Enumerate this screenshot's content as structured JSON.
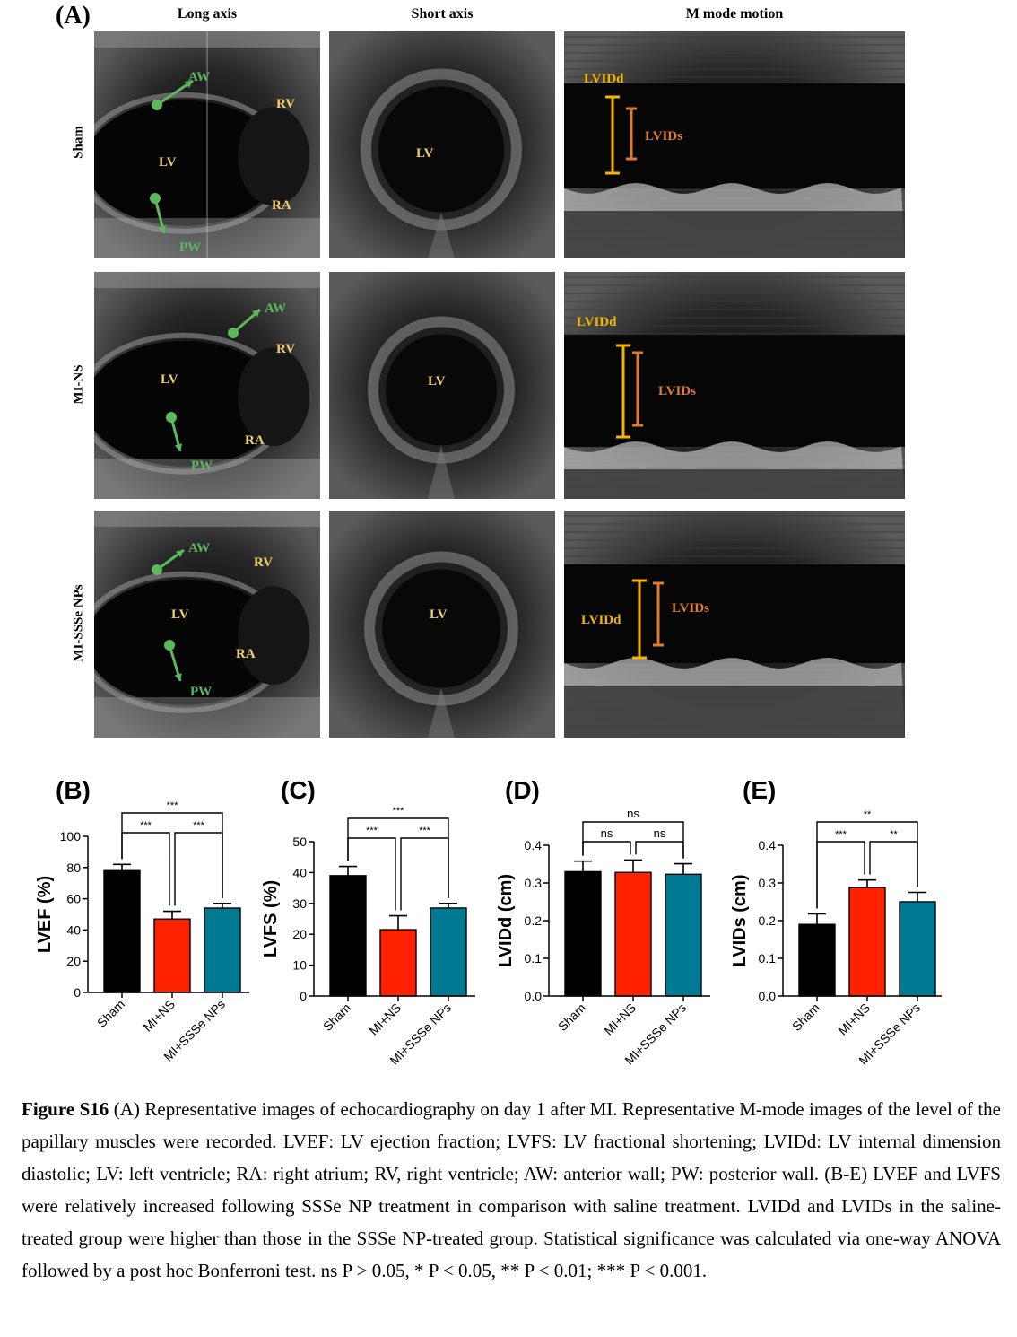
{
  "panel_a": {
    "letter": "(A)",
    "columns": [
      "Long axis",
      "Short axis",
      "M mode motion"
    ],
    "rows": [
      "Sham",
      "MI-NS",
      "MI-SSSe NPs"
    ],
    "labels": {
      "aw": "AW",
      "rv": "RV",
      "lv": "LV",
      "ra": "RA",
      "pw": "PW",
      "lvidd": "LVIDd",
      "lvids": "LVIDs"
    },
    "colors": {
      "green": "#5cb85c",
      "yellow": "#f5b400",
      "orange": "#e07a2e",
      "label": "#f0d06a"
    }
  },
  "chart_data": [
    {
      "panel": "(B)",
      "type": "bar",
      "ylabel": "LVEF (%)",
      "categories": [
        "Sham",
        "MI+NS",
        "MI+SSSe NPs"
      ],
      "values": [
        78,
        47,
        54
      ],
      "errors": [
        4,
        5,
        3
      ],
      "ylim": [
        0,
        100
      ],
      "yticks": [
        "0",
        "20",
        "40",
        "60",
        "80",
        "100"
      ],
      "significance": [
        {
          "from": 0,
          "to": 1,
          "label": "***",
          "level": 1
        },
        {
          "from": 1,
          "to": 2,
          "label": "***",
          "level": 1
        },
        {
          "from": 0,
          "to": 2,
          "label": "***",
          "level": 2
        }
      ]
    },
    {
      "panel": "(C)",
      "type": "bar",
      "ylabel": "LVFS (%)",
      "categories": [
        "Sham",
        "MI+NS",
        "MI+SSSe NPs"
      ],
      "values": [
        39,
        21.5,
        28.5
      ],
      "errors": [
        3,
        4.5,
        1.5
      ],
      "ylim": [
        0,
        50
      ],
      "yticks": [
        "0",
        "10",
        "20",
        "30",
        "40",
        "50"
      ],
      "significance": [
        {
          "from": 0,
          "to": 1,
          "label": "***",
          "level": 1
        },
        {
          "from": 1,
          "to": 2,
          "label": "***",
          "level": 1
        },
        {
          "from": 0,
          "to": 2,
          "label": "***",
          "level": 2
        }
      ]
    },
    {
      "panel": "(D)",
      "type": "bar",
      "ylabel": "LVIDd (cm)",
      "categories": [
        "Sham",
        "MI+NS",
        "MI+SSSe NPs"
      ],
      "values": [
        0.33,
        0.328,
        0.323
      ],
      "errors": [
        0.028,
        0.033,
        0.028
      ],
      "ylim": [
        0,
        0.4
      ],
      "yticks": [
        "0.0",
        "0.1",
        "0.2",
        "0.3",
        "0.4"
      ],
      "significance": [
        {
          "from": 0,
          "to": 1,
          "label": "ns",
          "level": 1
        },
        {
          "from": 1,
          "to": 2,
          "label": "ns",
          "level": 1
        },
        {
          "from": 0,
          "to": 2,
          "label": "ns",
          "level": 2
        }
      ]
    },
    {
      "panel": "(E)",
      "type": "bar",
      "ylabel": "LVIDs (cm)",
      "categories": [
        "Sham",
        "MI+NS",
        "MI+SSSe NPs"
      ],
      "values": [
        0.19,
        0.288,
        0.25
      ],
      "errors": [
        0.028,
        0.02,
        0.025
      ],
      "ylim": [
        0,
        0.4
      ],
      "yticks": [
        "0.0",
        "0.1",
        "0.2",
        "0.3",
        "0.4"
      ],
      "significance": [
        {
          "from": 0,
          "to": 1,
          "label": "***",
          "level": 1
        },
        {
          "from": 1,
          "to": 2,
          "label": "**",
          "level": 1
        },
        {
          "from": 0,
          "to": 2,
          "label": "**",
          "level": 2
        }
      ]
    }
  ],
  "bar_colors": [
    "#000000",
    "#ff2200",
    "#007a93"
  ],
  "caption": {
    "label": "Figure S16",
    "text": " (A) Representative images of echocardiography on day 1 after MI. Representative M-mode images of the level of the papillary muscles were recorded. LVEF: LV ejection fraction; LVFS: LV fractional shortening; LVIDd: LV internal dimension diastolic; LV: left ventricle; RA: right atrium; RV, right ventricle; AW: anterior wall; PW: posterior wall. (B-E) LVEF and LVFS were relatively increased following SSSe NP treatment in comparison with saline treatment. LVIDd and LVIDs in the saline-treated group were higher than those in the SSSe NP-treated group. Statistical significance was calculated via one-way ANOVA followed by a post hoc Bonferroni test. ns P > 0.05, * P < 0.05, ** P < 0.01; *** P < 0.001."
  }
}
